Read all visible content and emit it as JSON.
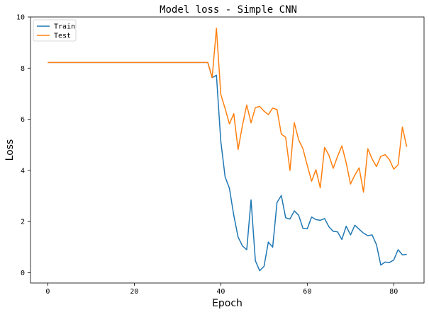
{
  "chart_data": {
    "type": "line",
    "title": "Model loss - Simple CNN",
    "xlabel": "Epoch",
    "ylabel": "Loss",
    "xlim": [
      -4,
      87
    ],
    "ylim": [
      -0.4,
      10
    ],
    "xticks": [
      0,
      20,
      40,
      60,
      80
    ],
    "yticks": [
      0,
      2,
      4,
      6,
      8,
      10
    ],
    "grid": false,
    "legend_position": "top-left",
    "series": [
      {
        "name": "Train",
        "color": "#1f77b4",
        "x": [
          0,
          1,
          2,
          3,
          4,
          5,
          6,
          7,
          8,
          9,
          10,
          11,
          12,
          13,
          14,
          15,
          16,
          17,
          18,
          19,
          20,
          21,
          22,
          23,
          24,
          25,
          26,
          27,
          28,
          29,
          30,
          31,
          32,
          33,
          34,
          35,
          36,
          37,
          38,
          39,
          40,
          41,
          42,
          43,
          44,
          45,
          46,
          47,
          48,
          49,
          50,
          51,
          52,
          53,
          54,
          55,
          56,
          57,
          58,
          59,
          60,
          61,
          62,
          63,
          64,
          65,
          66,
          67,
          68,
          69,
          70,
          71,
          72,
          73,
          74,
          75,
          76,
          77,
          78,
          79,
          80,
          81,
          82,
          83
        ],
        "values": [
          8.22,
          8.22,
          8.22,
          8.22,
          8.22,
          8.22,
          8.22,
          8.22,
          8.22,
          8.22,
          8.22,
          8.22,
          8.22,
          8.22,
          8.22,
          8.22,
          8.22,
          8.22,
          8.22,
          8.22,
          8.22,
          8.22,
          8.22,
          8.22,
          8.22,
          8.22,
          8.22,
          8.22,
          8.22,
          8.22,
          8.22,
          8.22,
          8.22,
          8.22,
          8.22,
          8.22,
          8.22,
          8.22,
          7.63,
          7.72,
          5.15,
          3.75,
          3.3,
          2.25,
          1.4,
          1.05,
          0.9,
          2.85,
          0.47,
          0.08,
          0.25,
          1.2,
          1.0,
          2.75,
          3.02,
          2.15,
          2.1,
          2.42,
          2.25,
          1.74,
          1.72,
          2.18,
          2.08,
          2.05,
          2.12,
          1.8,
          1.62,
          1.6,
          1.3,
          1.82,
          1.48,
          1.86,
          1.7,
          1.55,
          1.45,
          1.48,
          1.1,
          0.3,
          0.42,
          0.4,
          0.5,
          0.9,
          0.7,
          0.72
        ]
      },
      {
        "name": "Test",
        "color": "#ff7f0e",
        "x": [
          0,
          1,
          2,
          3,
          4,
          5,
          6,
          7,
          8,
          9,
          10,
          11,
          12,
          13,
          14,
          15,
          16,
          17,
          18,
          19,
          20,
          21,
          22,
          23,
          24,
          25,
          26,
          27,
          28,
          29,
          30,
          31,
          32,
          33,
          34,
          35,
          36,
          37,
          38,
          39,
          40,
          41,
          42,
          43,
          44,
          45,
          46,
          47,
          48,
          49,
          50,
          51,
          52,
          53,
          54,
          55,
          56,
          57,
          58,
          59,
          60,
          61,
          62,
          63,
          64,
          65,
          66,
          67,
          68,
          69,
          70,
          71,
          72,
          73,
          74,
          75,
          76,
          77,
          78,
          79,
          80,
          81,
          82,
          83
        ],
        "values": [
          8.22,
          8.22,
          8.22,
          8.22,
          8.22,
          8.22,
          8.22,
          8.22,
          8.22,
          8.22,
          8.22,
          8.22,
          8.22,
          8.22,
          8.22,
          8.22,
          8.22,
          8.22,
          8.22,
          8.22,
          8.22,
          8.22,
          8.22,
          8.22,
          8.22,
          8.22,
          8.22,
          8.22,
          8.22,
          8.22,
          8.22,
          8.22,
          8.22,
          8.22,
          8.22,
          8.22,
          8.22,
          8.22,
          7.63,
          9.56,
          6.98,
          6.42,
          5.82,
          6.22,
          4.82,
          5.75,
          6.56,
          5.86,
          6.46,
          6.5,
          6.32,
          6.18,
          6.44,
          6.38,
          5.42,
          5.3,
          4.0,
          5.87,
          5.2,
          4.85,
          4.2,
          3.58,
          4.03,
          3.32,
          4.9,
          4.6,
          4.08,
          4.55,
          4.96,
          4.3,
          3.47,
          3.82,
          4.1,
          3.15,
          4.85,
          4.45,
          4.15,
          4.55,
          4.62,
          4.42,
          4.05,
          4.22,
          5.7,
          4.92
        ]
      }
    ]
  }
}
